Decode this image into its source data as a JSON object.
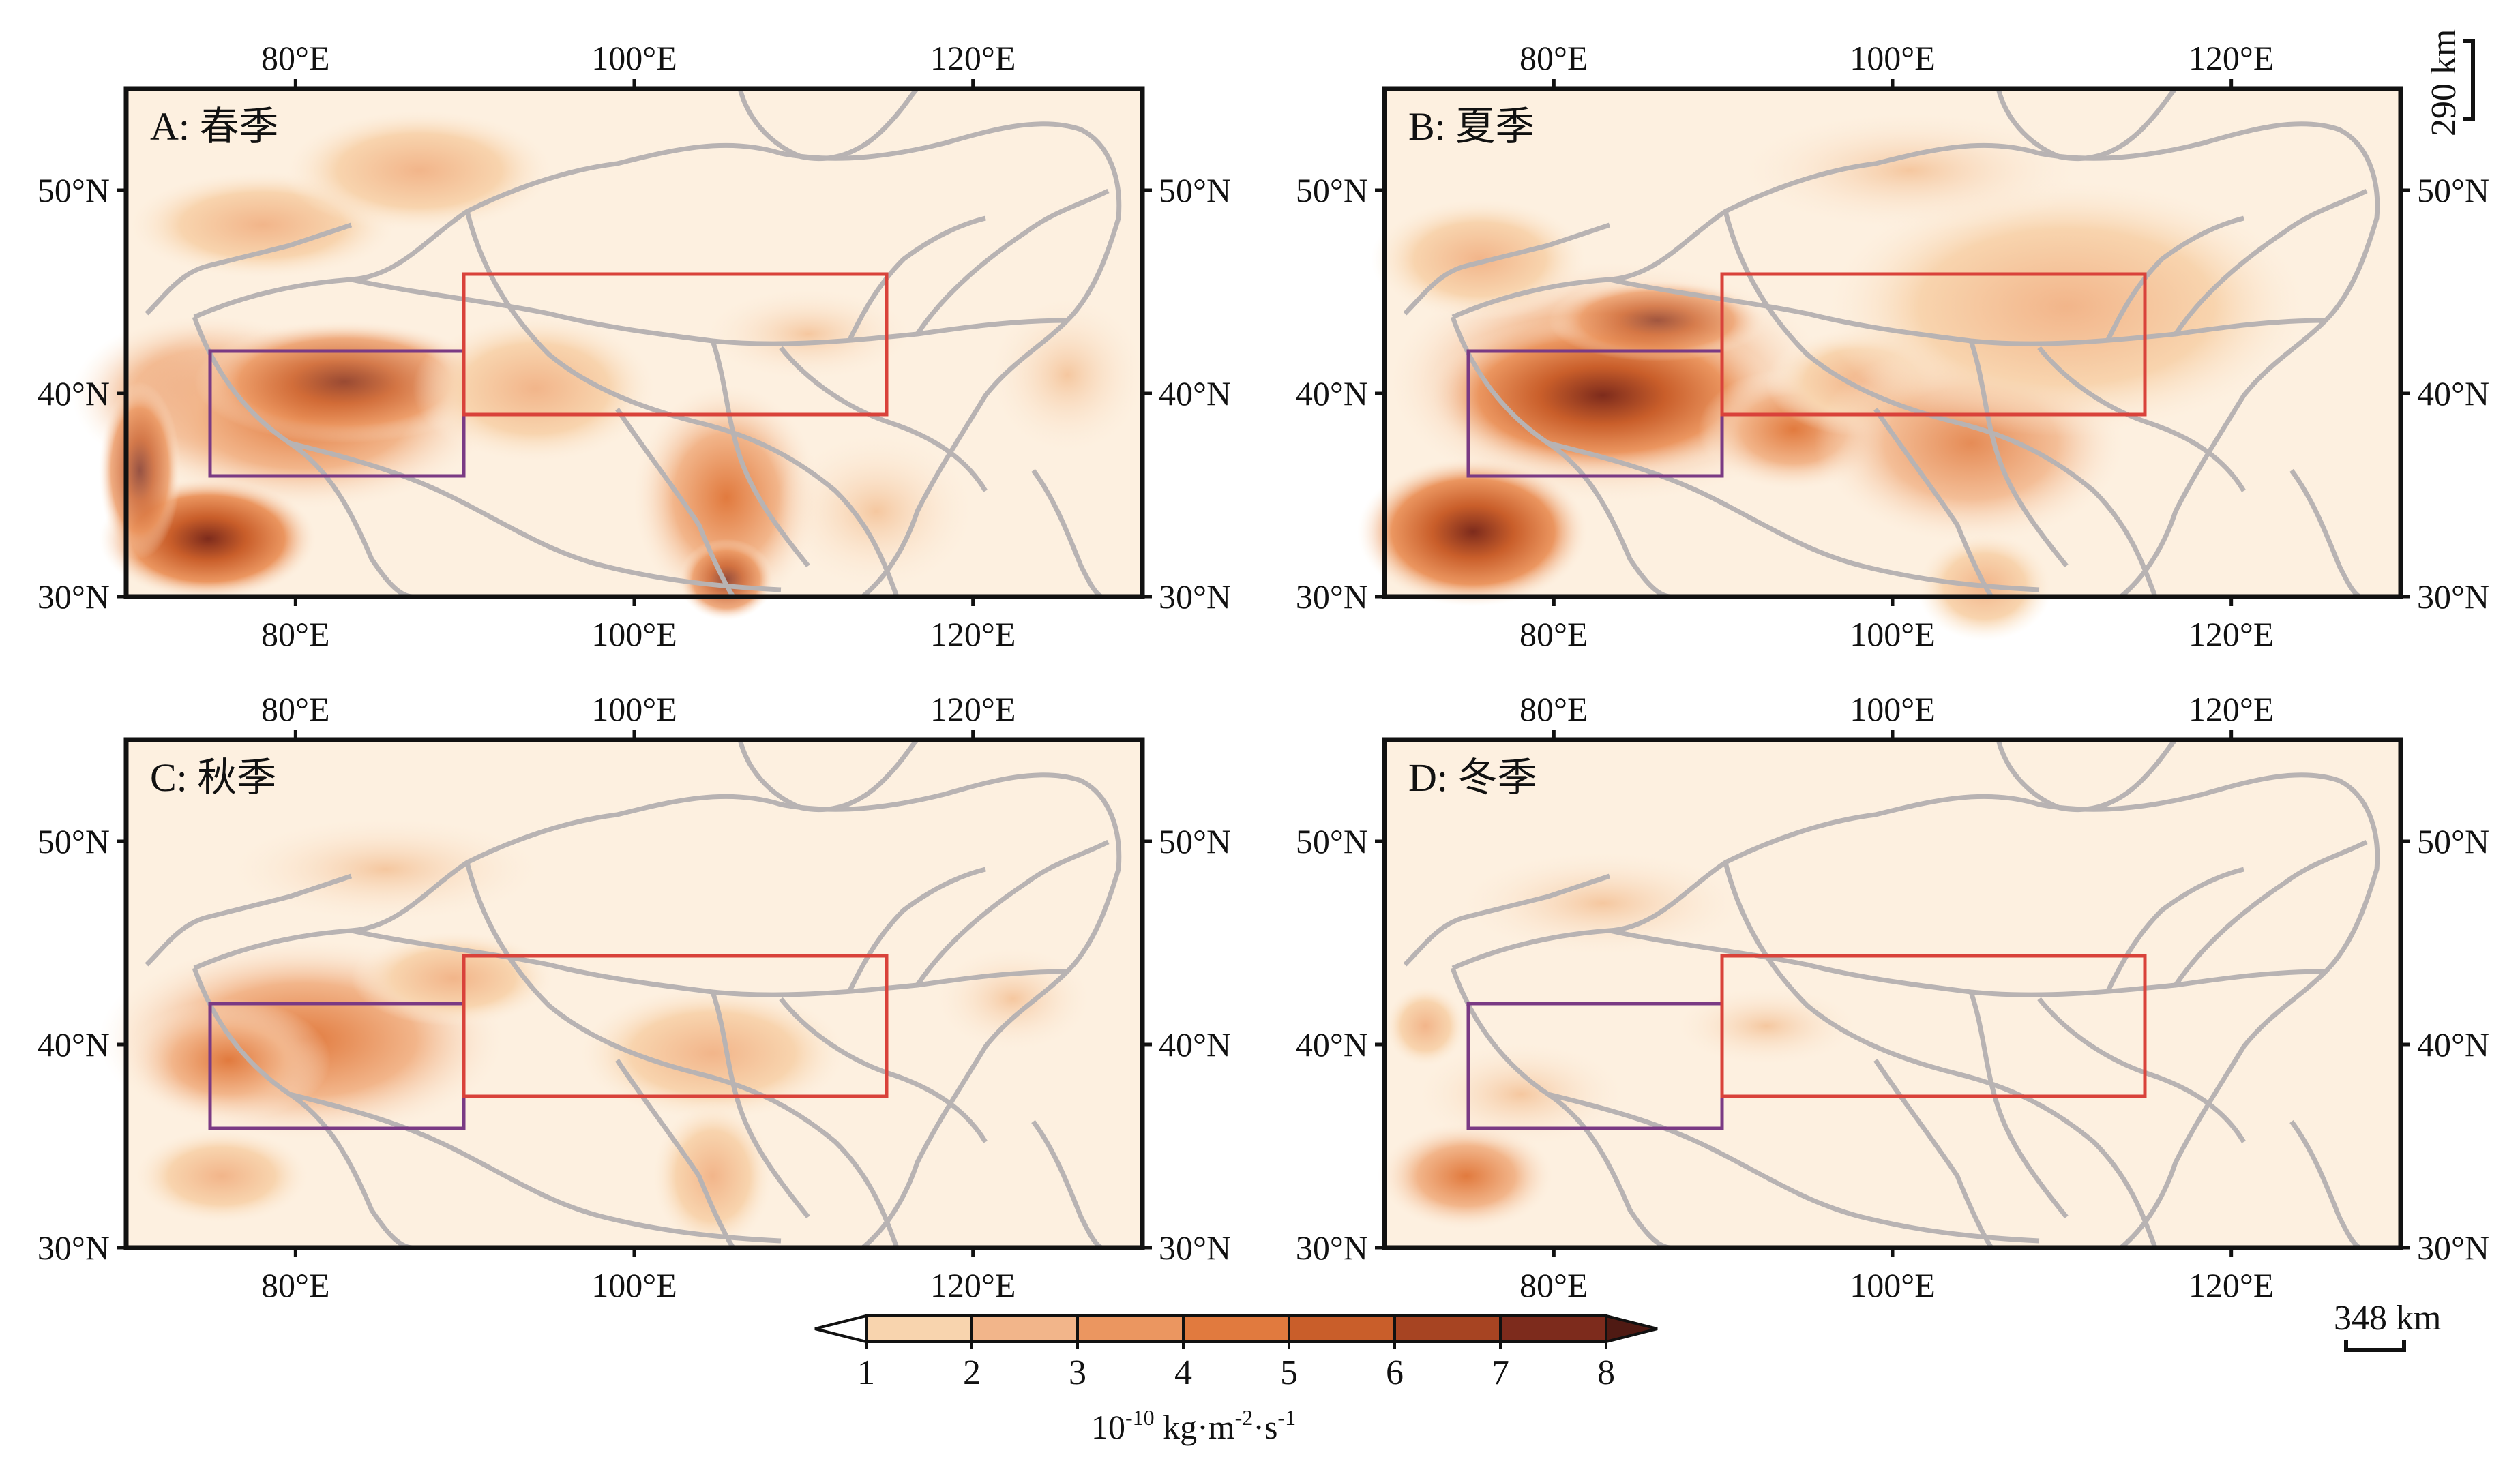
{
  "panels": [
    {
      "label": "A: 春季"
    },
    {
      "label": "B: 夏季"
    },
    {
      "label": "C: 秋季"
    },
    {
      "label": "D: 冬季"
    }
  ],
  "axes": {
    "lon_ticks": [
      "80°E",
      "100°E",
      "120°E"
    ],
    "lat_ticks": [
      "50°N",
      "40°N",
      "30°N"
    ],
    "lon_range": [
      70,
      130
    ],
    "lat_range": [
      30,
      55
    ]
  },
  "colorbar": {
    "ticks": [
      "1",
      "2",
      "3",
      "4",
      "5",
      "6",
      "7",
      "8"
    ],
    "colors": [
      "#fdf0e0",
      "#f8d4ae",
      "#f2b58a",
      "#eb9660",
      "#e17a3e",
      "#c95e2a",
      "#a74422",
      "#7d2b1c",
      "#4f1a13"
    ],
    "unit_base": "10",
    "unit_exp": "-10",
    "unit_rest": " kg·m",
    "unit_exp2": "-2",
    "unit_mid": "·s",
    "unit_exp3": "-1"
  },
  "scale_bars": {
    "vertical": "290 km",
    "horizontal": "348 km"
  },
  "boxes": {
    "taklimakan_color": "#7a3a84",
    "gobi_color": "#d9423a"
  }
}
